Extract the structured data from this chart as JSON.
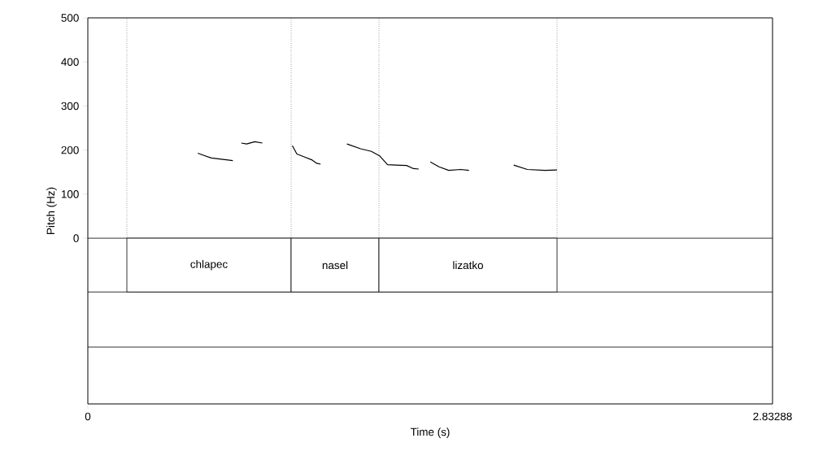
{
  "chart_data": {
    "type": "line",
    "xlabel": "Time (s)",
    "ylabel": "Pitch (Hz)",
    "x": [
      0.455,
      0.511,
      0.6,
      null,
      0.635,
      0.657,
      0.691,
      0.722,
      null,
      0.846,
      0.865,
      0.893,
      0.926,
      0.947,
      0.963,
      null,
      1.072,
      1.128,
      1.173,
      1.207,
      1.24,
      1.274,
      1.319,
      1.347,
      1.369,
      null,
      1.417,
      1.453,
      1.493,
      1.543,
      1.577,
      null,
      1.762,
      1.818,
      1.891,
      1.941
    ],
    "series": [
      {
        "color": "#000000",
        "values": [
          193,
          182,
          176,
          null,
          216,
          214,
          219,
          216,
          null,
          210,
          191,
          185,
          178,
          170,
          168,
          null,
          214,
          203,
          197,
          187,
          167,
          166,
          165,
          158,
          157,
          null,
          173,
          162,
          154,
          156,
          154,
          null,
          166,
          156,
          154,
          155
        ]
      }
    ],
    "line_style": "solid",
    "xlim": [
      0,
      2.83288
    ],
    "ylim": [
      -376,
      500
    ],
    "xticks": [
      0,
      2.83288
    ],
    "yticks": [
      0,
      100,
      200,
      300,
      400,
      500
    ],
    "ref_lines": [
      {
        "axis": "y",
        "value": 0,
        "label": null,
        "line_style": "solid"
      },
      {
        "axis": "y",
        "value": -122,
        "label": null,
        "line_style": "solid"
      },
      {
        "axis": "y",
        "value": -247,
        "label": null,
        "line_style": "solid"
      },
      {
        "axis": "x",
        "value": 0.1615,
        "label": null,
        "line_style": "dotted"
      },
      {
        "axis": "x",
        "value": 0.8411,
        "label": null,
        "line_style": "dotted"
      },
      {
        "axis": "x",
        "value": 1.2045,
        "label": null,
        "line_style": "dotted"
      },
      {
        "axis": "x",
        "value": 1.9413,
        "label": null,
        "line_style": "dotted"
      }
    ],
    "bands": [
      {
        "axis": "x",
        "from": 0.1615,
        "to": 0.8411,
        "label": "chlapec",
        "color": "#ffffff"
      },
      {
        "axis": "x",
        "from": 0.8411,
        "to": 1.2045,
        "label": "nasel",
        "color": "#ffffff"
      },
      {
        "axis": "x",
        "from": 1.2045,
        "to": 1.9413,
        "label": "lizatko",
        "color": "#ffffff"
      }
    ]
  }
}
